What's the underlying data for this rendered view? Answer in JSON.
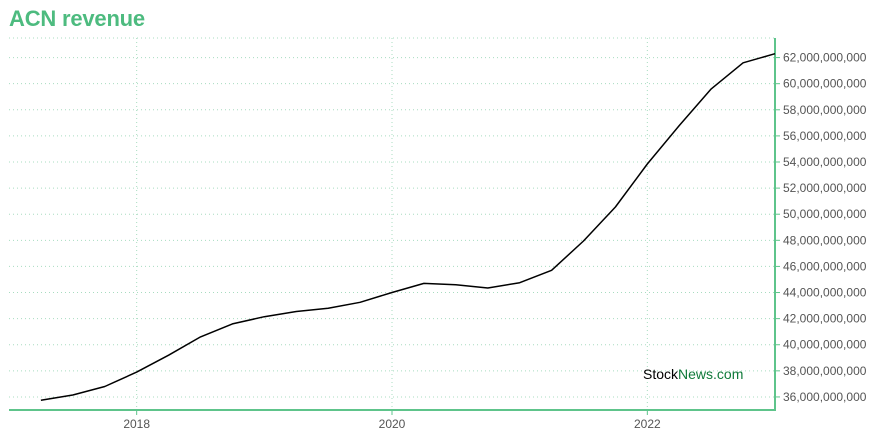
{
  "chart_data": {
    "type": "line",
    "title": "ACN revenue",
    "xlabel": "",
    "ylabel": "",
    "x_ticks": [
      "2018",
      "2020",
      "2022"
    ],
    "xlim": [
      2017.0,
      2023.0
    ],
    "ylim": [
      35000000000,
      63500000000
    ],
    "y_ticks": [
      36000000000,
      38000000000,
      40000000000,
      42000000000,
      44000000000,
      46000000000,
      48000000000,
      50000000000,
      52000000000,
      54000000000,
      56000000000,
      58000000000,
      60000000000,
      62000000000
    ],
    "grid": true,
    "legend": "none",
    "series": [
      {
        "x": [
          2017.25,
          2017.5,
          2017.75,
          2018.0,
          2018.25,
          2018.5,
          2018.75,
          2019.0,
          2019.25,
          2019.5,
          2019.75,
          2020.0,
          2020.25,
          2020.5,
          2020.75,
          2021.0,
          2021.25,
          2021.5,
          2021.75,
          2022.0,
          2022.25,
          2022.5,
          2022.75,
          2023.0
        ],
        "values": [
          35750000000,
          36150000000,
          36800000000,
          37900000000,
          39200000000,
          40600000000,
          41600000000,
          42150000000,
          42550000000,
          42800000000,
          43250000000,
          44000000000,
          44700000000,
          44600000000,
          44350000000,
          44750000000,
          45700000000,
          47950000000,
          50550000000,
          53850000000,
          56800000000,
          59600000000,
          61600000000,
          62300000000
        ]
      }
    ],
    "colors": {
      "title": "#4dbb7f",
      "axis": "#5ec48b",
      "grid": "#a8dcc0",
      "line": "#000000"
    }
  },
  "watermark": {
    "part1": "Stock",
    "part2": "News",
    "part3": ".com",
    "color_dark": "#000000",
    "color_green": "#0f7a3a"
  }
}
